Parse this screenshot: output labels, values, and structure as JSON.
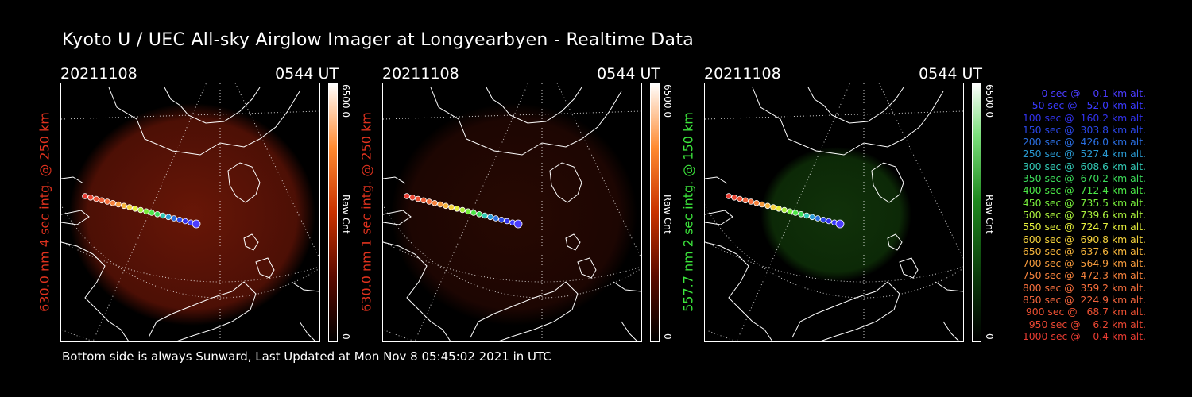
{
  "title": "Kyoto U / UEC All-sky Airglow Imager at Longyearbyen - Realtime Data",
  "footer": "Bottom side is always Sunward, Last Updated at Mon Nov  8 05:45:02 2021 in UTC",
  "panels": [
    {
      "date": "20211108",
      "time": "0544 UT",
      "label": "630.0 nm 4 sec intg. @ 250 km",
      "label_color": "#e0321e",
      "cbar_max": "6500.0",
      "cbar_unit": "Raw Cnt",
      "cbar_min": "0",
      "colormap": "red",
      "glow_strength": 0.85
    },
    {
      "date": "20211108",
      "time": "0544 UT",
      "label": "630.0 nm 1 sec intg. @ 250 km",
      "label_color": "#e0321e",
      "cbar_max": "6500.0",
      "cbar_unit": "Raw Cnt",
      "cbar_min": "0",
      "colormap": "red",
      "glow_strength": 0.32
    },
    {
      "date": "20211108",
      "time": "0544 UT",
      "label": "557.7 nm 2 sec intg. @ 150 km",
      "label_color": "#3ce63c",
      "cbar_max": "6500.0",
      "cbar_unit": "Raw Cnt",
      "cbar_min": "0",
      "colormap": "green",
      "glow_strength": 0.55
    }
  ],
  "legend": [
    {
      "text": "   0 sec @    0.1 km alt.",
      "color": "#4b3cff"
    },
    {
      "text": "  50 sec @   52.0 km alt.",
      "color": "#3a3aff"
    },
    {
      "text": " 100 sec @  160.2 km alt.",
      "color": "#3232ee"
    },
    {
      "text": " 150 sec @  303.8 km alt.",
      "color": "#2a46e6"
    },
    {
      "text": " 200 sec @  426.0 km alt.",
      "color": "#2a6ee0"
    },
    {
      "text": " 250 sec @  527.4 km alt.",
      "color": "#2a9ad2"
    },
    {
      "text": " 300 sec @  608.6 km alt.",
      "color": "#32c8b4"
    },
    {
      "text": " 350 sec @  670.2 km alt.",
      "color": "#3cdc5a"
    },
    {
      "text": " 400 sec @  712.4 km alt.",
      "color": "#4be646"
    },
    {
      "text": " 450 sec @  735.5 km alt.",
      "color": "#78ee3c"
    },
    {
      "text": " 500 sec @  739.6 km alt.",
      "color": "#aaf03c"
    },
    {
      "text": " 550 sec @  724.7 km alt.",
      "color": "#e6f03c"
    },
    {
      "text": " 600 sec @  690.8 km alt.",
      "color": "#f5d23c"
    },
    {
      "text": " 650 sec @  637.6 km alt.",
      "color": "#f5b43c"
    },
    {
      "text": " 700 sec @  564.9 km alt.",
      "color": "#f59a3c"
    },
    {
      "text": " 750 sec @  472.3 km alt.",
      "color": "#f5823c"
    },
    {
      "text": " 800 sec @  359.2 km alt.",
      "color": "#f56e3c"
    },
    {
      "text": " 850 sec @  224.9 km alt.",
      "color": "#f0643c"
    },
    {
      "text": " 900 sec @   68.7 km alt.",
      "color": "#ec5032"
    },
    {
      "text": " 950 sec @    6.2 km alt.",
      "color": "#e84632"
    },
    {
      "text": "1000 sec @    0.4 km alt.",
      "color": "#e83c32"
    }
  ]
}
